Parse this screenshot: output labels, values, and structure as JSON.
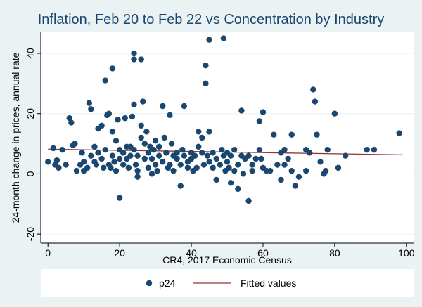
{
  "chart_data": {
    "type": "scatter",
    "title": "Inflation, Feb 20 to Feb 22 vs Concentration by Industry",
    "xlabel": "CR4, 2017 Economic Census",
    "ylabel": "24-month change in prices, annual rate",
    "xlim": [
      -2,
      102
    ],
    "ylim": [
      -23,
      47
    ],
    "x_ticks": [
      0,
      20,
      40,
      60,
      80,
      100
    ],
    "y_ticks": [
      -20,
      0,
      20,
      40
    ],
    "grid": true,
    "legend_position": "bottom",
    "legend": [
      {
        "label": "p24",
        "marker": "circle",
        "color": "#1a476f"
      },
      {
        "label": "Fitted values",
        "marker": "line",
        "color": "#90353b"
      }
    ],
    "fit_line": {
      "name": "Fitted values",
      "x": [
        0,
        99
      ],
      "y": [
        8.2,
        6.3
      ]
    },
    "series": [
      {
        "name": "p24",
        "color": "#1a476f",
        "points": [
          [
            0,
            4
          ],
          [
            1.5,
            8.5
          ],
          [
            2,
            3
          ],
          [
            2.5,
            4.5
          ],
          [
            3,
            2
          ],
          [
            4,
            8
          ],
          [
            5,
            3
          ],
          [
            6,
            18.5
          ],
          [
            6.5,
            17
          ],
          [
            7,
            9.5
          ],
          [
            7.5,
            10
          ],
          [
            8,
            1
          ],
          [
            9,
            3
          ],
          [
            9.5,
            7
          ],
          [
            10,
            1
          ],
          [
            10,
            4
          ],
          [
            11,
            2
          ],
          [
            11.5,
            23.5
          ],
          [
            12,
            21.5
          ],
          [
            12,
            6
          ],
          [
            13,
            9
          ],
          [
            13,
            4
          ],
          [
            13.5,
            3
          ],
          [
            14,
            15
          ],
          [
            14,
            7
          ],
          [
            15,
            16
          ],
          [
            15,
            5
          ],
          [
            15.5,
            2
          ],
          [
            16,
            31
          ],
          [
            16,
            8
          ],
          [
            16.5,
            19.5
          ],
          [
            17,
            20
          ],
          [
            17,
            3
          ],
          [
            17.5,
            2
          ],
          [
            18,
            35
          ],
          [
            18,
            14
          ],
          [
            18,
            6
          ],
          [
            18.5,
            4
          ],
          [
            19,
            11
          ],
          [
            19,
            1
          ],
          [
            19.5,
            18
          ],
          [
            20,
            8
          ],
          [
            20,
            -8
          ],
          [
            20,
            5
          ],
          [
            21,
            7
          ],
          [
            21,
            3
          ],
          [
            21.5,
            18.5
          ],
          [
            22,
            9
          ],
          [
            22,
            5
          ],
          [
            22.5,
            2
          ],
          [
            23,
            9
          ],
          [
            23,
            6
          ],
          [
            23.5,
            19
          ],
          [
            24,
            40
          ],
          [
            24,
            38
          ],
          [
            24,
            23
          ],
          [
            24,
            8
          ],
          [
            24.5,
            3
          ],
          [
            25,
            1
          ],
          [
            25,
            -1
          ],
          [
            25,
            6
          ],
          [
            26,
            38
          ],
          [
            26,
            16
          ],
          [
            26,
            12
          ],
          [
            26.5,
            24
          ],
          [
            27,
            10
          ],
          [
            27,
            5
          ],
          [
            27.5,
            14
          ],
          [
            28,
            7
          ],
          [
            28,
            2
          ],
          [
            28.5,
            9
          ],
          [
            29,
            5
          ],
          [
            29,
            0
          ],
          [
            29.5,
            8
          ],
          [
            30,
            11
          ],
          [
            30,
            3
          ],
          [
            30.5,
            1
          ],
          [
            31,
            6
          ],
          [
            31,
            9
          ],
          [
            32,
            22.5
          ],
          [
            32,
            4
          ],
          [
            32.5,
            12
          ],
          [
            33,
            7
          ],
          [
            33.5,
            2
          ],
          [
            34,
            19.5
          ],
          [
            34,
            3
          ],
          [
            34.5,
            10
          ],
          [
            35,
            6
          ],
          [
            35,
            1
          ],
          [
            36,
            5
          ],
          [
            36,
            7
          ],
          [
            37,
            -4
          ],
          [
            37,
            3
          ],
          [
            37.5,
            8
          ],
          [
            38,
            22.5
          ],
          [
            38,
            6
          ],
          [
            39,
            4
          ],
          [
            39,
            2
          ],
          [
            40,
            5
          ],
          [
            40,
            7
          ],
          [
            40.5,
            1
          ],
          [
            41,
            6
          ],
          [
            41.5,
            2
          ],
          [
            42,
            14
          ],
          [
            42,
            9
          ],
          [
            43,
            7
          ],
          [
            43,
            12
          ],
          [
            43.5,
            3
          ],
          [
            44,
            36
          ],
          [
            44,
            30
          ],
          [
            44.5,
            6
          ],
          [
            45,
            44.5
          ],
          [
            45,
            14
          ],
          [
            45,
            4
          ],
          [
            46,
            7
          ],
          [
            46,
            2
          ],
          [
            47,
            5
          ],
          [
            47,
            -2
          ],
          [
            48,
            3
          ],
          [
            48.5,
            8
          ],
          [
            49,
            45
          ],
          [
            49,
            6
          ],
          [
            49.5,
            1
          ],
          [
            50,
            7
          ],
          [
            50,
            4
          ],
          [
            50.5,
            2
          ],
          [
            51,
            6
          ],
          [
            51,
            -3
          ],
          [
            52,
            8
          ],
          [
            52,
            1
          ],
          [
            53,
            -5
          ],
          [
            53,
            3
          ],
          [
            54,
            21
          ],
          [
            54,
            6
          ],
          [
            54.5,
            0
          ],
          [
            55,
            5
          ],
          [
            56,
            -9
          ],
          [
            56,
            6
          ],
          [
            57,
            3
          ],
          [
            57,
            1
          ],
          [
            58,
            5
          ],
          [
            59,
            17.5
          ],
          [
            59,
            8
          ],
          [
            59.5,
            5
          ],
          [
            60,
            20.5
          ],
          [
            60,
            2
          ],
          [
            61,
            1
          ],
          [
            62,
            1
          ],
          [
            63,
            13
          ],
          [
            64,
            3
          ],
          [
            65,
            7
          ],
          [
            65,
            -2
          ],
          [
            66,
            8
          ],
          [
            66,
            3
          ],
          [
            67,
            5
          ],
          [
            68,
            13
          ],
          [
            68,
            1
          ],
          [
            69,
            -4
          ],
          [
            70,
            -1
          ],
          [
            72,
            8
          ],
          [
            72,
            1
          ],
          [
            73,
            7
          ],
          [
            74,
            28
          ],
          [
            74.5,
            24
          ],
          [
            75,
            13
          ],
          [
            76,
            4
          ],
          [
            77,
            0
          ],
          [
            77.5,
            1
          ],
          [
            78,
            8
          ],
          [
            80,
            20
          ],
          [
            81,
            2
          ],
          [
            83,
            6
          ],
          [
            89,
            8
          ],
          [
            91,
            8
          ],
          [
            98,
            13.5
          ]
        ]
      }
    ]
  }
}
